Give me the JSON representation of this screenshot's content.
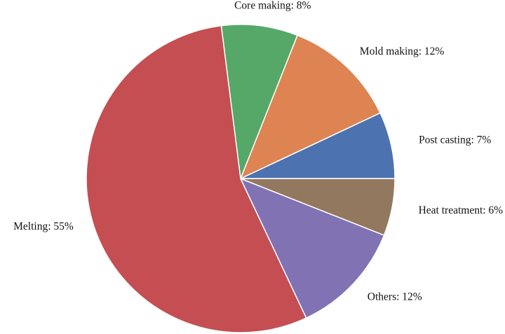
{
  "chart_data": {
    "type": "pie",
    "slices": [
      {
        "label": "Post casting: 7%",
        "value": 7,
        "color": "#4C72B0"
      },
      {
        "label": "Mold making: 12%",
        "value": 12,
        "color": "#DD8452"
      },
      {
        "label": "Core making: 8%",
        "value": 8,
        "color": "#55A868"
      },
      {
        "label": "Melting: 55%",
        "value": 55,
        "color": "#C44E52"
      },
      {
        "label": "Others: 12%",
        "value": 12,
        "color": "#8172B3"
      },
      {
        "label": "Heat treatment: 6%",
        "value": 6,
        "color": "#937860"
      }
    ],
    "start_angle_deg": 0,
    "direction": "counterclockwise"
  }
}
